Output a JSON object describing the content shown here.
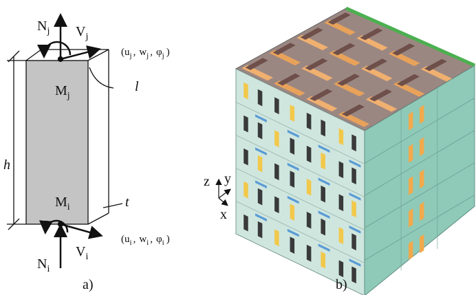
{
  "figure_a": {
    "N_j": {
      "base": "N",
      "sub": "j"
    },
    "V_j": {
      "base": "V",
      "sub": "j"
    },
    "M_j": {
      "base": "M",
      "sub": "j"
    },
    "M_i": {
      "base": "M",
      "sub": "i"
    },
    "N_i": {
      "base": "N",
      "sub": "i"
    },
    "V_i": {
      "base": "V",
      "sub": "i"
    },
    "dof_j": {
      "open": "(",
      "sep": ",",
      "close": ")",
      "items": [
        {
          "base": "u",
          "sub": "j"
        },
        {
          "base": "w",
          "sub": "j"
        },
        {
          "base": "φ",
          "sub": "j"
        }
      ]
    },
    "dof_i": {
      "open": "(",
      "sep": ",",
      "close": ")",
      "items": [
        {
          "base": "u",
          "sub": "i"
        },
        {
          "base": "w",
          "sub": "i"
        },
        {
          "base": "φ",
          "sub": "i"
        }
      ]
    },
    "length": "l",
    "height": "h",
    "thickness": "t",
    "caption": "a)"
  },
  "figure_b": {
    "axes": {
      "z": "z",
      "y": "y",
      "x": "x"
    },
    "caption": "b)"
  }
}
